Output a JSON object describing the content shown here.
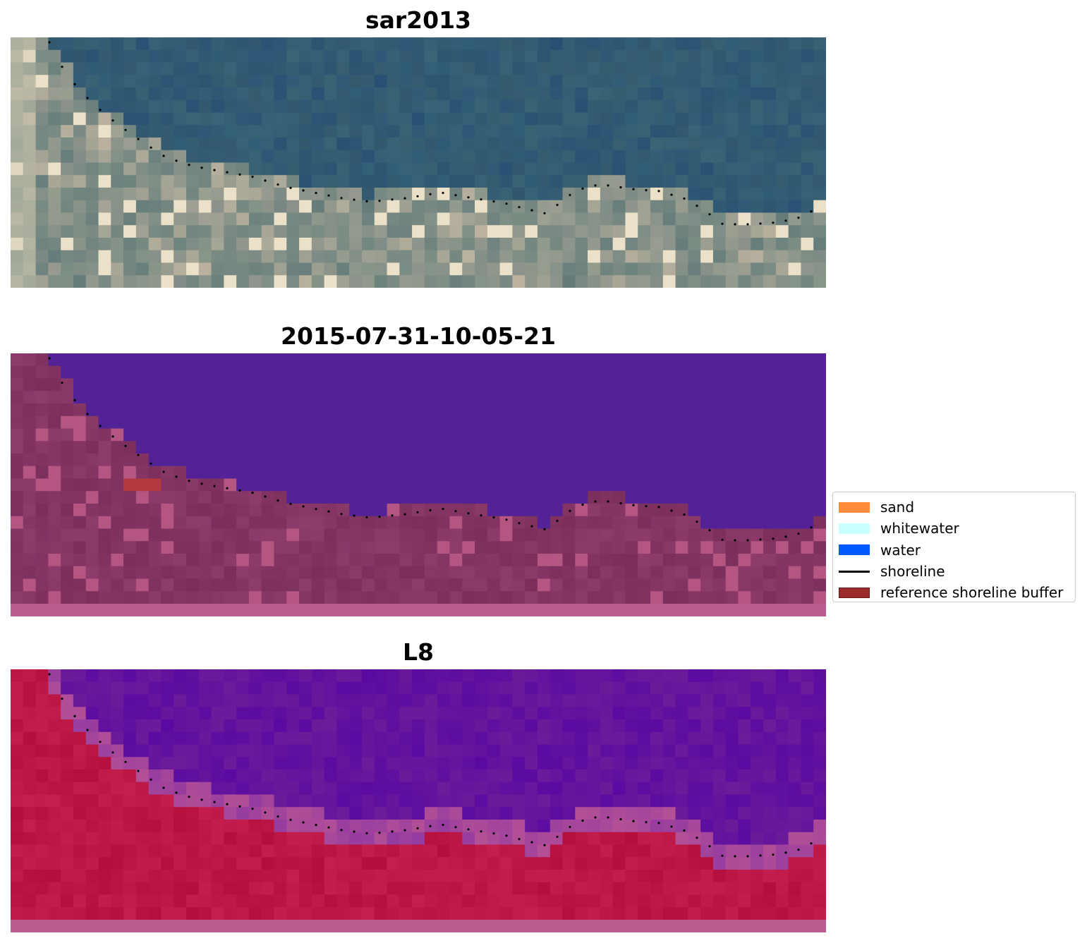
{
  "panels": [
    {
      "title": "sar2013",
      "kind": "rgb"
    },
    {
      "title": "2015-07-31-10-05-21",
      "kind": "classified"
    },
    {
      "title": "L8",
      "kind": "index"
    }
  ],
  "legend": {
    "placement": "right-center",
    "items": [
      {
        "label": "sand",
        "color": "#ff8c3b",
        "type": "patch"
      },
      {
        "label": "whitewater",
        "color": "#c8fffe",
        "type": "patch"
      },
      {
        "label": "water",
        "color": "#005aff",
        "type": "patch"
      },
      {
        "label": "shoreline",
        "color": "#000000",
        "type": "line"
      },
      {
        "label": "reference shoreline buffer",
        "color": "#9b2a2d",
        "type": "patch"
      }
    ]
  },
  "colors": {
    "water_class": "#522296",
    "land_class": "#8e3c6b",
    "border_strip": "#ba5c90",
    "index_water": "#6c1c9a",
    "index_land": "#c41e4e",
    "shoreline_dots": "#000000"
  }
}
